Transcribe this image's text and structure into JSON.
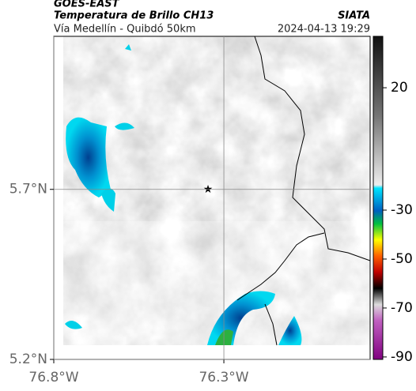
{
  "header": {
    "satellite": "GOES-EAST",
    "product": "Temperatura de Brillo CH13",
    "source": "SIATA",
    "region": "Vía Medellín - Quibdó 50km",
    "datetime": "2024-04-13 19:29"
  },
  "map": {
    "lonlim": [
      -76.8,
      -75.87
    ],
    "latlim": [
      5.2,
      6.15
    ],
    "lonticks": [
      {
        "value": -76.8,
        "label": "76.8°W"
      },
      {
        "value": -76.3,
        "label": "76.3°W"
      }
    ],
    "latticks": [
      {
        "value": 5.2,
        "label": "5.2°N"
      },
      {
        "value": 5.7,
        "label": "5.7°N"
      }
    ],
    "grid": true
  },
  "colorbar": {
    "clim": [
      -91,
      41
    ],
    "ticks": [
      20,
      -30,
      -50,
      -70,
      -90
    ]
  }
}
